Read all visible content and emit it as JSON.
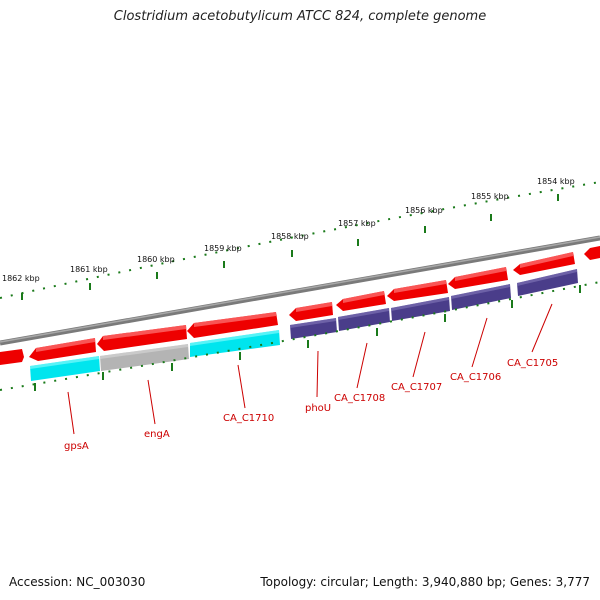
{
  "title": "Clostridium acetobutylicum ATCC 824, complete genome",
  "accession": "Accession: NC_003030",
  "stats": "Topology: circular; Length: 3,940,880 bp; Genes: 3,777",
  "colors": {
    "backbone": "#7a7a7a",
    "tick": "#1a7a1a",
    "forward": "#ee0000",
    "cyan": "#00e5ee",
    "gray": "#b4b4b4",
    "navy": "#4a3d8a",
    "label": "#cc0000"
  },
  "kbp_labels": [
    "1862 kbp",
    "1861 kbp",
    "1860 kbp",
    "1859 kbp",
    "1858 kbp",
    "1857 kbp",
    "1856 kbp",
    "1855 kbp",
    "1854 kbp"
  ],
  "gene_labels": [
    "gpsA",
    "engA",
    "CA_C1710",
    "phoU",
    "CA_C1708",
    "CA_C1707",
    "CA_C1706",
    "CA_C1705"
  ]
}
